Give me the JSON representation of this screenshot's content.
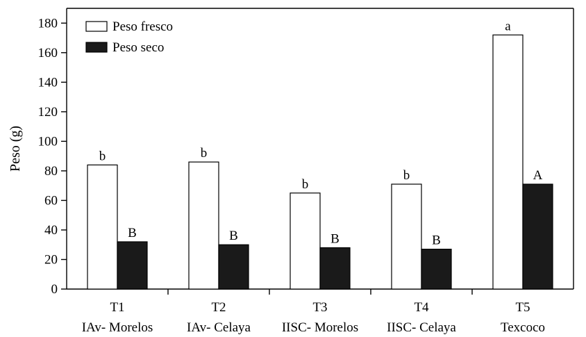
{
  "chart_data": {
    "type": "bar",
    "title": "",
    "xlabel": "",
    "ylabel": "Peso (g)",
    "ylim": [
      0,
      190
    ],
    "yticks": [
      0,
      20,
      40,
      60,
      80,
      100,
      120,
      140,
      160,
      180
    ],
    "grid": false,
    "legend_position": "top-left",
    "categories": [
      {
        "code": "T1",
        "name": "IAv- Morelos"
      },
      {
        "code": "T2",
        "name": "IAv- Celaya"
      },
      {
        "code": "T3",
        "name": "IISC- Morelos"
      },
      {
        "code": "T4",
        "name": "IISC- Celaya"
      },
      {
        "code": "T5",
        "name": "Texcoco"
      }
    ],
    "series": [
      {
        "name": "Peso fresco",
        "fill": "#ffffff",
        "values": [
          84,
          86,
          65,
          71,
          172
        ],
        "labels": [
          "b",
          "b",
          "b",
          "b",
          "a"
        ]
      },
      {
        "name": "Peso seco",
        "fill": "#1a1a1a",
        "values": [
          32,
          30,
          28,
          27,
          71
        ],
        "labels": [
          "B",
          "B",
          "B",
          "B",
          "A"
        ]
      }
    ]
  }
}
